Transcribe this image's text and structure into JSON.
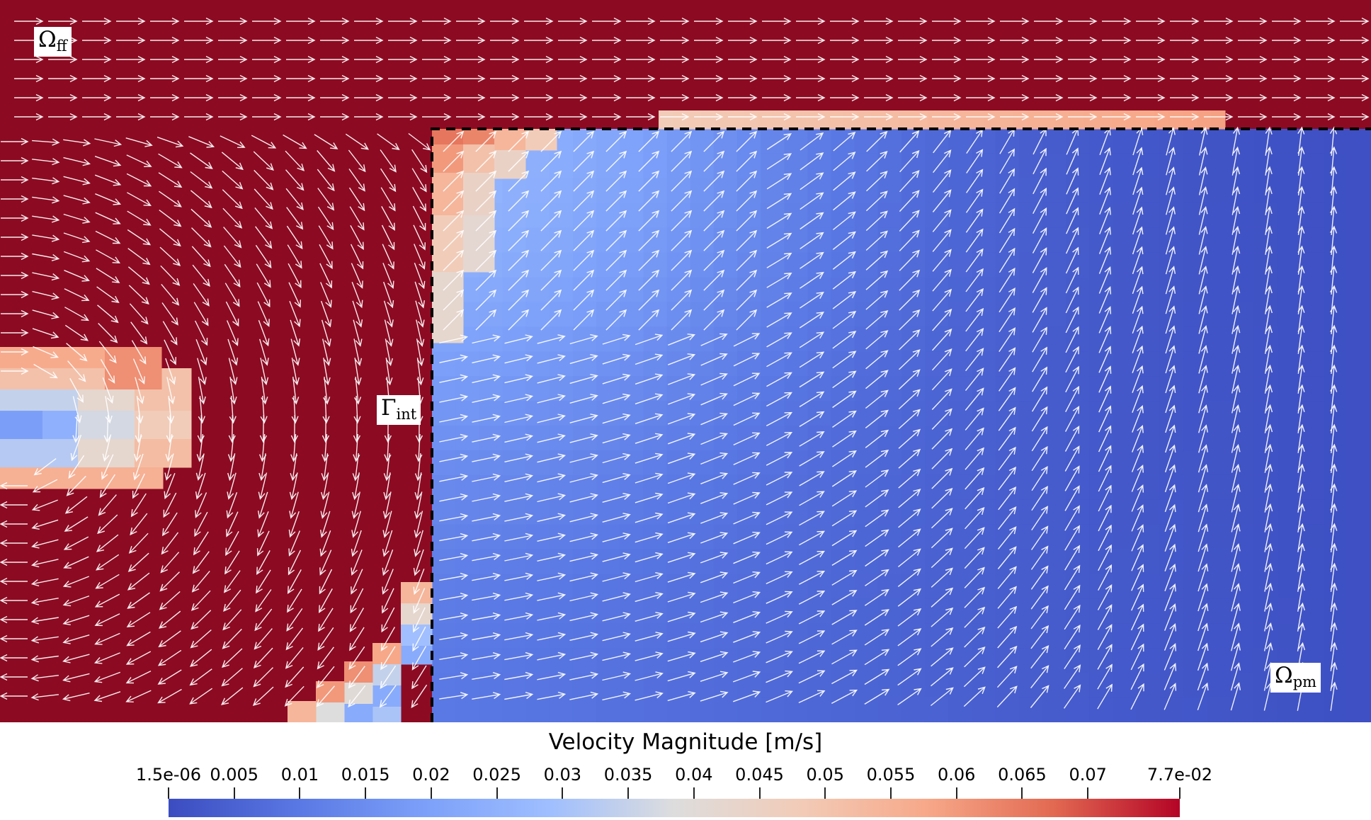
{
  "regions": {
    "free_flow": {
      "symbol": "Ω",
      "subscript": "ff"
    },
    "interface": {
      "symbol": "Γ",
      "subscript": "int"
    },
    "porous_medium": {
      "symbol": "Ω",
      "subscript": "pm"
    }
  },
  "colorbar": {
    "title": "Velocity Magnitude [m/s]",
    "min": 1.5e-06,
    "max": 0.077,
    "colormap": "coolwarm",
    "low_color": "#3b4cc0",
    "mid_color": "#dddddd",
    "high_color": "#b40426",
    "ticks": [
      {
        "label": "1.5e-06",
        "value": 1.5e-06
      },
      {
        "label": "0.005",
        "value": 0.005
      },
      {
        "label": "0.01",
        "value": 0.01
      },
      {
        "label": "0.015",
        "value": 0.015
      },
      {
        "label": "0.02",
        "value": 0.02
      },
      {
        "label": "0.025",
        "value": 0.025
      },
      {
        "label": "0.03",
        "value": 0.03
      },
      {
        "label": "0.035",
        "value": 0.035
      },
      {
        "label": "0.04",
        "value": 0.04
      },
      {
        "label": "0.045",
        "value": 0.045
      },
      {
        "label": "0.05",
        "value": 0.05
      },
      {
        "label": "0.055",
        "value": 0.055
      },
      {
        "label": "0.06",
        "value": 0.06
      },
      {
        "label": "0.065",
        "value": 0.065
      },
      {
        "label": "0.07",
        "value": 0.07
      },
      {
        "label": "7.7e-02",
        "value": 0.077
      }
    ]
  },
  "colors": {
    "free_flow_field": "#8c0a22",
    "arrow_color": "#ffffff",
    "interface_line": "#000000"
  }
}
